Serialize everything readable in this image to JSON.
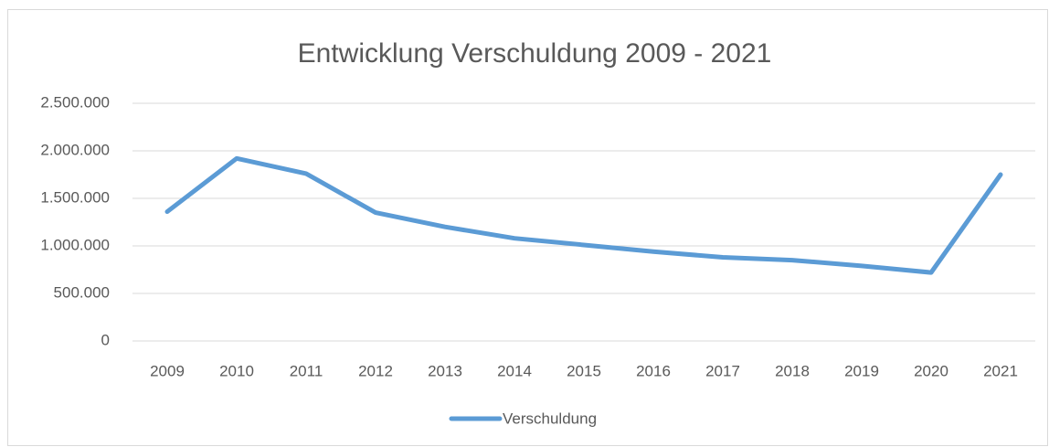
{
  "chart_data": {
    "type": "line",
    "title": "Entwicklung Verschuldung 2009 - 2021",
    "categories": [
      "2009",
      "2010",
      "2011",
      "2012",
      "2013",
      "2014",
      "2015",
      "2016",
      "2017",
      "2018",
      "2019",
      "2020",
      "2021"
    ],
    "series": [
      {
        "name": "Verschuldung",
        "color": "#5b9bd5",
        "values": [
          1360000,
          1920000,
          1760000,
          1350000,
          1200000,
          1080000,
          1010000,
          940000,
          880000,
          850000,
          790000,
          720000,
          1750000
        ]
      }
    ],
    "ylim": [
      0,
      2500000
    ],
    "yticks": [
      0,
      {
        "value": 500000,
        "label": "500.000"
      },
      {
        "value": 1000000,
        "label": "1.000.000"
      },
      {
        "value": 1500000,
        "label": "1.500.000"
      },
      {
        "value": 2000000,
        "label": "2.000.000"
      },
      {
        "value": 2500000,
        "label": "2.500.000"
      }
    ],
    "grid": true,
    "legend": "bottom"
  }
}
